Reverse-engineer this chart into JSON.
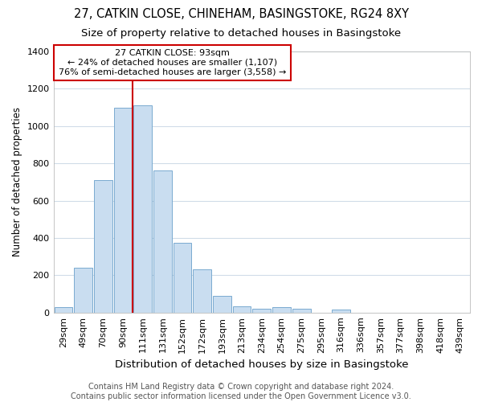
{
  "title1": "27, CATKIN CLOSE, CHINEHAM, BASINGSTOKE, RG24 8XY",
  "title2": "Size of property relative to detached houses in Basingstoke",
  "xlabel": "Distribution of detached houses by size in Basingstoke",
  "ylabel": "Number of detached properties",
  "categories": [
    "29sqm",
    "49sqm",
    "70sqm",
    "90sqm",
    "111sqm",
    "131sqm",
    "152sqm",
    "172sqm",
    "193sqm",
    "213sqm",
    "234sqm",
    "254sqm",
    "275sqm",
    "295sqm",
    "316sqm",
    "336sqm",
    "357sqm",
    "377sqm",
    "398sqm",
    "418sqm",
    "439sqm"
  ],
  "values": [
    30,
    240,
    710,
    1100,
    1110,
    760,
    375,
    230,
    90,
    35,
    20,
    30,
    20,
    0,
    15,
    0,
    0,
    0,
    0,
    0,
    0
  ],
  "bar_color": "#c9ddf0",
  "bar_edgecolor": "#7aaad0",
  "grid_color": "#d0dce8",
  "vline_x_index": 3.5,
  "vline_color": "#cc0000",
  "annotation_text": "27 CATKIN CLOSE: 93sqm\n← 24% of detached houses are smaller (1,107)\n76% of semi-detached houses are larger (3,558) →",
  "annotation_box_color": "#ffffff",
  "annotation_border_color": "#cc0000",
  "ylim": [
    0,
    1400
  ],
  "yticks": [
    0,
    200,
    400,
    600,
    800,
    1000,
    1200,
    1400
  ],
  "footer1": "Contains HM Land Registry data © Crown copyright and database right 2024.",
  "footer2": "Contains public sector information licensed under the Open Government Licence v3.0.",
  "title1_fontsize": 10.5,
  "title2_fontsize": 9.5,
  "xlabel_fontsize": 9.5,
  "ylabel_fontsize": 8.5,
  "tick_fontsize": 8,
  "annotation_fontsize": 8,
  "footer_fontsize": 7,
  "background_color": "#ffffff"
}
